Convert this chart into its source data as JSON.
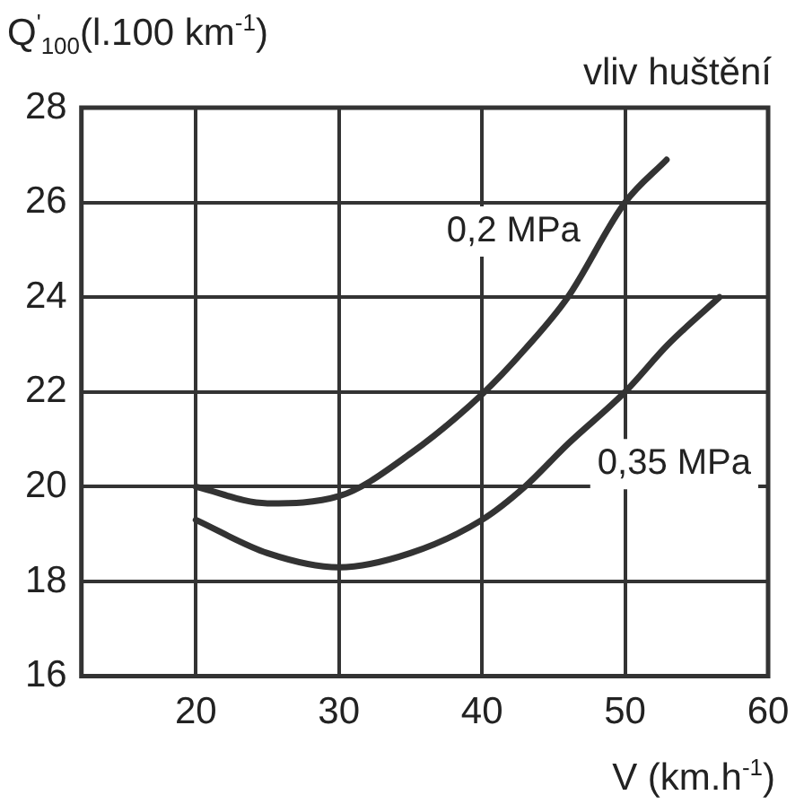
{
  "chart_data": {
    "type": "line",
    "ylabel": "Q$^{'}$$_{100}$(l.100 km$^{-1}$)",
    "subtitle": "vliv huštění",
    "xlabel": "V (km.h$^{-1}$)",
    "xlim": [
      12,
      60
    ],
    "xticks": [
      20,
      30,
      40,
      50,
      60
    ],
    "ylim": [
      16,
      28
    ],
    "yticks": [
      16,
      18,
      20,
      22,
      24,
      26,
      28
    ],
    "grid": true,
    "legend": false,
    "marker": "none",
    "line_style": "solid",
    "series": [
      {
        "name": "0,2 MPa",
        "color": "#333333",
        "x": [
          20,
          25,
          30,
          35,
          40,
          43,
          46,
          50,
          52.9
        ],
        "values": [
          20,
          19.65,
          19.8,
          20.7,
          21.95,
          22.9,
          24,
          26,
          26.9
        ]
      },
      {
        "name": "0,35 MPa",
        "color": "#333333",
        "x": [
          20,
          25,
          30,
          35,
          40,
          43,
          46,
          50,
          53,
          56.6
        ],
        "values": [
          19.3,
          18.6,
          18.3,
          18.6,
          19.3,
          20,
          20.9,
          22,
          23,
          24
        ]
      }
    ]
  }
}
